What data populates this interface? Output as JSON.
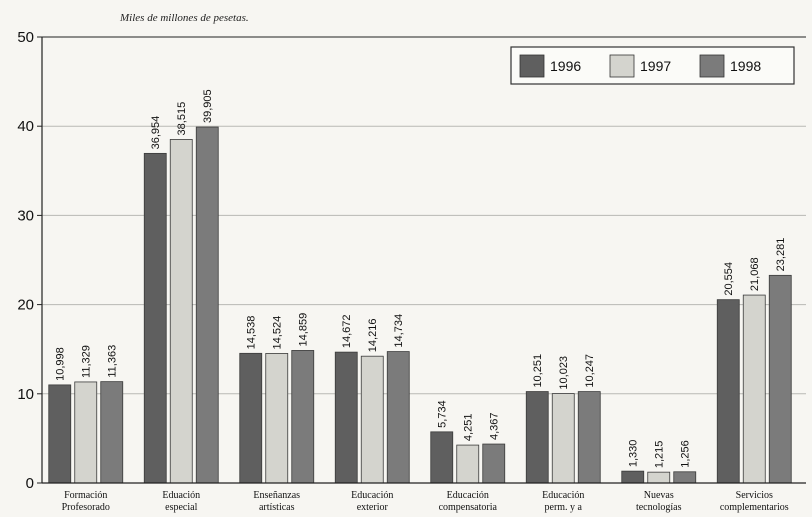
{
  "chart_data": {
    "type": "bar",
    "title": "",
    "unit_label": "Miles de millones de pesetas.",
    "xlabel": "",
    "ylabel": "",
    "ylim": [
      0,
      50
    ],
    "yticks": [
      "0",
      "10",
      "20",
      "30",
      "40",
      "50"
    ],
    "grid": true,
    "legend_position": "top-right",
    "categories": [
      [
        "Formación",
        "Profesorado"
      ],
      [
        "Eduación",
        "especial"
      ],
      [
        "Enseñanzas",
        "artísticas"
      ],
      [
        "Educación",
        "exterior"
      ],
      [
        "Educación",
        "compensatoria"
      ],
      [
        "Educación",
        "perm. y a"
      ],
      [
        "Nuevas",
        "tecnologías"
      ],
      [
        "Servicios",
        "complementarios"
      ]
    ],
    "series": [
      {
        "name": "1996",
        "color": "#5f5f5f",
        "values": [
          10.998,
          36.954,
          14.538,
          14.672,
          5.734,
          10.251,
          1.33,
          20.554
        ],
        "labels": [
          "10,998",
          "36,954",
          "14,538",
          "14,672",
          "5,734",
          "10,251",
          "1,330",
          "20,554"
        ]
      },
      {
        "name": "1997",
        "color": "#d4d4ce",
        "values": [
          11.329,
          38.515,
          14.524,
          14.216,
          4.251,
          10.023,
          1.215,
          21.068
        ],
        "labels": [
          "11,329",
          "38,515",
          "14,524",
          "14,216",
          "4,251",
          "10,023",
          "1,215",
          "21,068"
        ]
      },
      {
        "name": "1998",
        "color": "#7b7b7b",
        "values": [
          11.363,
          39.905,
          14.859,
          14.734,
          4.367,
          10.247,
          1.256,
          23.281
        ],
        "labels": [
          "11,363",
          "39,905",
          "14,859",
          "14,734",
          "4,367",
          "10,247",
          "1,256",
          "23,281"
        ]
      }
    ]
  }
}
